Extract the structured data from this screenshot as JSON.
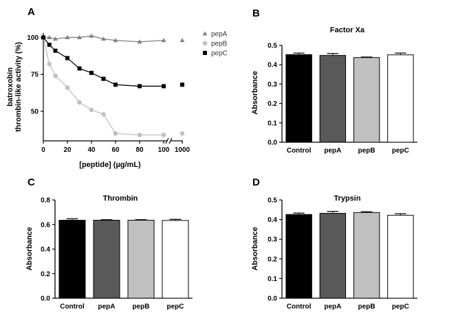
{
  "colors": {
    "pepA": "#808080",
    "pepB": "#c0c0c0",
    "pepC": "#000000",
    "control_bar": "#000000",
    "pepA_bar": "#595959",
    "pepB_bar": "#c0c0c0",
    "pepC_bar": "#ffffff"
  },
  "chart_data": [
    {
      "panel": "A",
      "type": "line",
      "title": "",
      "xlabel": "[peptide] (µg/mL)",
      "ylabel_lines": [
        "batroxobin",
        "thrombin-like activity (%)"
      ],
      "x_ticks": [
        "0",
        "20",
        "40",
        "60",
        "80",
        "100",
        "1000"
      ],
      "y_ticks": [
        "50",
        "75",
        "100"
      ],
      "xlim": [
        0,
        1000
      ],
      "ylim": [
        30,
        103
      ],
      "x_axis_break": true,
      "legend_position": "top-right",
      "x": [
        0,
        5,
        10,
        20,
        30,
        40,
        50,
        60,
        80,
        100,
        1000
      ],
      "series": [
        {
          "name": "pepA",
          "marker": "triangle",
          "values": [
            100,
            100,
            99,
            100,
            100,
            101,
            99,
            98,
            97,
            98,
            98
          ]
        },
        {
          "name": "pepB",
          "marker": "circle",
          "values": [
            100,
            82,
            74,
            66,
            56,
            51,
            48,
            35,
            34,
            34,
            35
          ]
        },
        {
          "name": "pepC",
          "marker": "square",
          "values": [
            100,
            95,
            91,
            86,
            79,
            76,
            72,
            68,
            67,
            67,
            68
          ]
        }
      ]
    },
    {
      "panel": "B",
      "type": "bar",
      "title": "Factor Xa",
      "xlabel": "",
      "ylabel": "Absorbance",
      "categories": [
        "Control",
        "pepA",
        "pepB",
        "pepC"
      ],
      "values": [
        0.452,
        0.448,
        0.437,
        0.451
      ],
      "errors": [
        0.008,
        0.01,
        0.003,
        0.009
      ],
      "ylim": [
        0,
        0.5
      ],
      "y_ticks": [
        "0.0",
        "0.1",
        "0.2",
        "0.3",
        "0.4",
        "0.5"
      ]
    },
    {
      "panel": "C",
      "type": "bar",
      "title": "Thrombin",
      "xlabel": "",
      "ylabel": "Absorbance",
      "categories": [
        "Control",
        "pepA",
        "pepB",
        "pepC"
      ],
      "values": [
        0.635,
        0.635,
        0.635,
        0.633
      ],
      "errors": [
        0.012,
        0.004,
        0.004,
        0.009
      ],
      "ylim": [
        0,
        0.8
      ],
      "y_ticks": [
        "0.0",
        "0.2",
        "0.4",
        "0.6",
        "0.8"
      ]
    },
    {
      "panel": "D",
      "type": "bar",
      "title": "Trypsin",
      "xlabel": "",
      "ylabel": "Absorbance",
      "categories": [
        "Control",
        "pepA",
        "pepB",
        "pepC"
      ],
      "values": [
        0.426,
        0.432,
        0.436,
        0.422
      ],
      "errors": [
        0.007,
        0.01,
        0.004,
        0.008
      ],
      "ylim": [
        0,
        0.5
      ],
      "y_ticks": [
        "0.0",
        "0.1",
        "0.2",
        "0.3",
        "0.4",
        "0.5"
      ]
    }
  ]
}
